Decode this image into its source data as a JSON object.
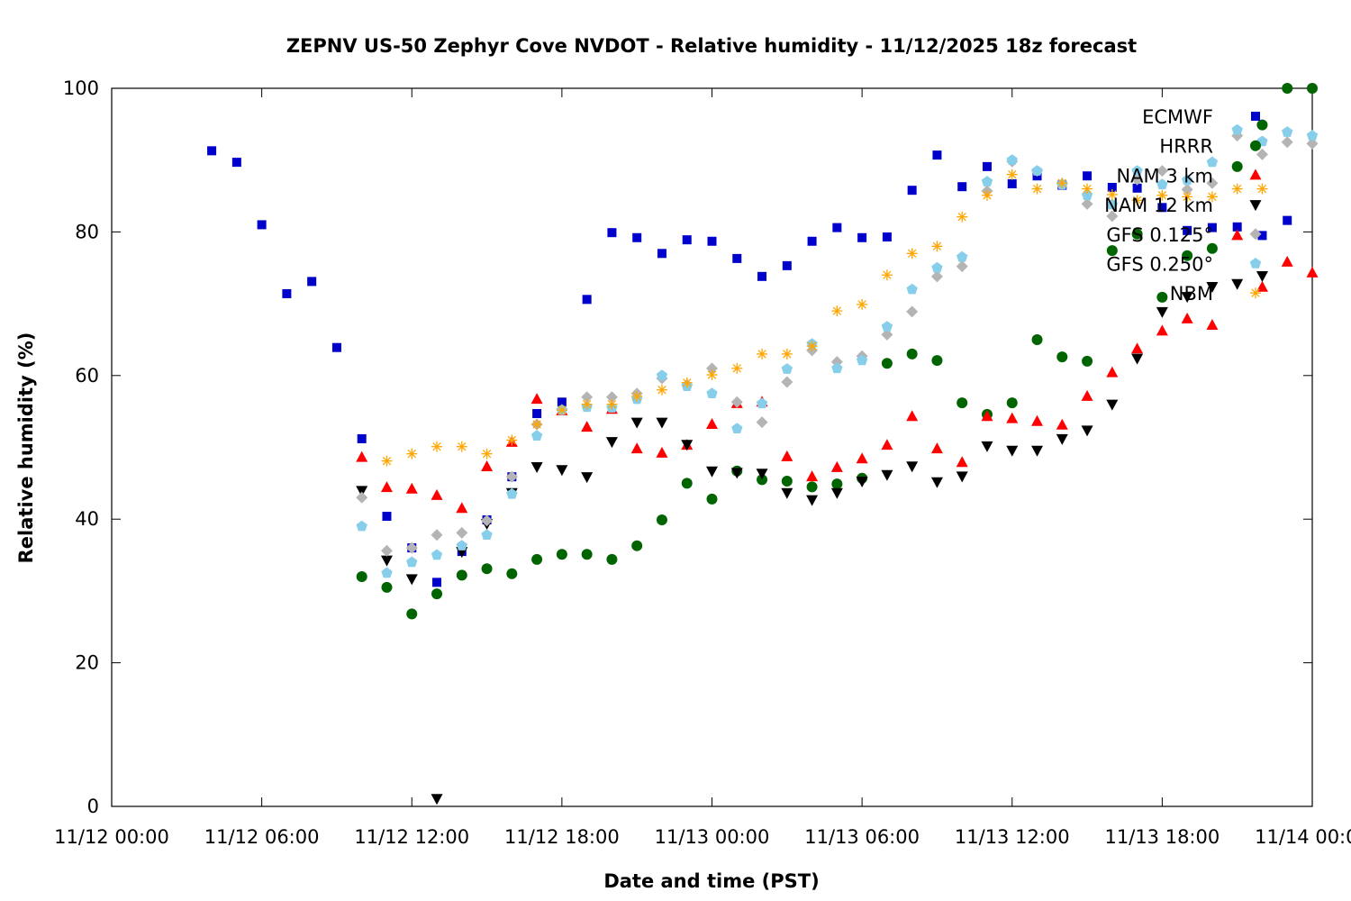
{
  "chart_data": {
    "type": "scatter",
    "title": "ZEPNV US-50 Zephyr Cove NVDOT - Relative humidity - 11/12/2025 18z forecast",
    "xlabel": "Date and time (PST)",
    "ylabel": "Relative humidity (%)",
    "xlim": [
      "11/12 00:00",
      "11/14 00:00"
    ],
    "ylim": [
      0,
      100
    ],
    "x_ticks": [
      "11/12 00:00",
      "11/12 06:00",
      "11/12 12:00",
      "11/12 18:00",
      "11/13 00:00",
      "11/13 06:00",
      "11/13 12:00",
      "11/13 18:00",
      "11/14 00:00"
    ],
    "y_ticks": [
      "0",
      "20",
      "40",
      "60",
      "80",
      "100"
    ],
    "grid": false,
    "legend_position": "top-right",
    "series": [
      {
        "name": "ECMWF",
        "color": "#0000cc",
        "marker": "square",
        "start": "11/12 04:00",
        "interval_hours": 1,
        "values": [
          91.3,
          89.7,
          81,
          71.4,
          73.1,
          63.9,
          51.2,
          40.4,
          36,
          31.2,
          35.5,
          39.9,
          45.9,
          54.7,
          56.3,
          70.6,
          79.9,
          79.2,
          77,
          78.9,
          78.7,
          76.3,
          73.8,
          75.3,
          78.7,
          80.6,
          79.2,
          79.3,
          85.8,
          90.7,
          86.3,
          89.1,
          86.7,
          87.8,
          86.5,
          87.8,
          86.2,
          86.1,
          83.4,
          80.2,
          80.6,
          80.7,
          79.5,
          81.6
        ]
      },
      {
        "name": "HRRR",
        "color": "#006400",
        "marker": "circle",
        "start": "11/12 10:00",
        "interval_hours": 1,
        "values": [
          32,
          30.5,
          26.8,
          29.6,
          32.2,
          33.1,
          32.4,
          34.4,
          35.1,
          35.1,
          34.4,
          36.3,
          39.9,
          45,
          42.8,
          46.7,
          45.5,
          45.3,
          44.5,
          44.9,
          45.7,
          61.7,
          63,
          62.1,
          56.2,
          54.6,
          56.2,
          65,
          62.6,
          62,
          77.4,
          79.7,
          70.9,
          76.7,
          77.7,
          89.1,
          94.9,
          100,
          100
        ]
      },
      {
        "name": "NAM 3 km",
        "color": "#ff0000",
        "marker": "triangle-up",
        "start": "11/12 10:00",
        "interval_hours": 1,
        "values": [
          48.6,
          44.4,
          44.2,
          43.3,
          41.5,
          47.3,
          50.7,
          56.7,
          55.1,
          52.8,
          55.3,
          49.8,
          49.2,
          50.3,
          53.2,
          56.1,
          56.3,
          48.7,
          45.9,
          47.2,
          48.4,
          50.3,
          54.3,
          49.8,
          47.9,
          54.3,
          54,
          53.6,
          53.1,
          57.1,
          60.4,
          63.7,
          66.2,
          67.9,
          67,
          79.5,
          72.3,
          75.8,
          74.3
        ]
      },
      {
        "name": "NAM 12 km",
        "color": "#000000",
        "marker": "triangle-down",
        "start": "11/12 10:00",
        "interval_hours": 1,
        "values": [
          44,
          34.3,
          31.7,
          1.1,
          35.5,
          39.4,
          43.7,
          47.3,
          46.9,
          45.9,
          50.8,
          53.5,
          53.5,
          50.4,
          46.7,
          46.5,
          46.4,
          43.7,
          42.7,
          43.7,
          45.3,
          46.2,
          47.4,
          45.2,
          46,
          50.2,
          49.6,
          49.6,
          51.2,
          52.4,
          56,
          62.4,
          68.9,
          71,
          72.4,
          72.8,
          73.9
        ]
      },
      {
        "name": "GFS 0.125°",
        "color": "#b4b4b4",
        "marker": "diamond",
        "start": "11/12 10:00",
        "interval_hours": 1,
        "values": [
          43,
          35.6,
          36,
          37.8,
          38.1,
          39.8,
          45.9,
          53.2,
          55.2,
          57,
          57,
          57.5,
          59.6,
          58.7,
          61,
          56.3,
          53.5,
          59.1,
          63.5,
          61.9,
          62.7,
          65.7,
          68.9,
          73.8,
          75.2,
          85.7,
          89.8,
          88.5,
          86.7,
          83.9,
          82.2,
          87.3,
          88.5,
          85.9,
          86.8,
          93.4,
          90.8,
          92.5,
          92.3
        ]
      },
      {
        "name": "GFS 0.250°",
        "color": "#87ceeb",
        "marker": "pentagon",
        "start": "11/12 10:00",
        "interval_hours": 1,
        "values": [
          39,
          32.5,
          34,
          35,
          36.3,
          37.8,
          43.5,
          51.6,
          55.2,
          55.6,
          55.5,
          56.7,
          60,
          58.5,
          57.5,
          52.6,
          56.1,
          60.9,
          64.4,
          61,
          62.1,
          66.8,
          72,
          75,
          76.5,
          87,
          90,
          88.5,
          86.6,
          85.1,
          83.8,
          88.5,
          86.6,
          87.2,
          89.7,
          94.2,
          92.6,
          93.9,
          93.4
        ]
      },
      {
        "name": "NBM",
        "color": "#ffa500",
        "marker": "asterisk",
        "start": "11/12 11:00",
        "interval_hours": 1,
        "values": [
          48.1,
          49.1,
          50.1,
          50.1,
          49.1,
          51,
          53.2,
          55.2,
          56,
          56,
          57.1,
          58,
          59,
          60.1,
          61,
          63,
          63,
          64.1,
          69,
          69.9,
          74,
          77,
          78,
          82.1,
          85.1,
          88,
          86,
          86.8,
          86,
          85.2,
          84.4,
          85.1,
          84.9,
          84.9,
          86,
          86
        ]
      }
    ]
  }
}
